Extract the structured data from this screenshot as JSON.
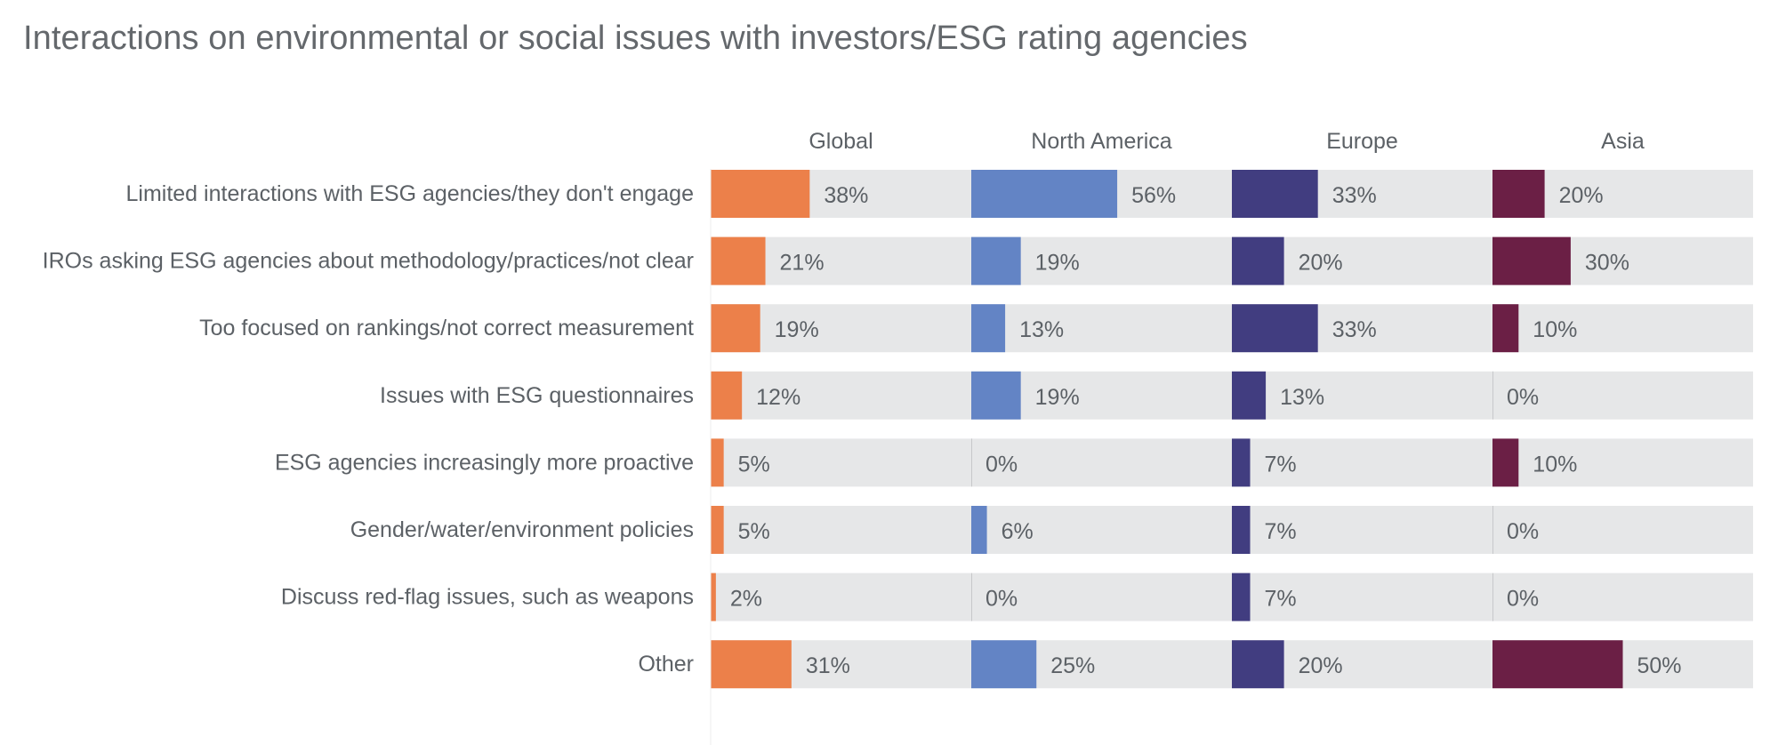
{
  "chart_data": {
    "type": "bar",
    "title": "Interactions on environmental or social issues with investors/ESG rating agencies",
    "categories": [
      "Limited interactions with ESG agencies/they don't engage",
      "IROs asking ESG agencies about methodology/practices/not clear",
      "Too focused on rankings/not correct measurement",
      "Issues with ESG questionnaires",
      "ESG agencies increasingly more proactive",
      "Gender/water/environment policies",
      "Discuss red-flag issues, such as weapons",
      "Other"
    ],
    "series": [
      {
        "name": "Global",
        "color": "#ec804a",
        "values": [
          38,
          21,
          19,
          12,
          5,
          5,
          2,
          31
        ]
      },
      {
        "name": "North America",
        "color": "#6384c5",
        "values": [
          56,
          19,
          13,
          19,
          0,
          6,
          0,
          25
        ]
      },
      {
        "name": "Europe",
        "color": "#413d80",
        "values": [
          33,
          20,
          33,
          13,
          7,
          7,
          7,
          20
        ]
      },
      {
        "name": "Asia",
        "color": "#6b1f45",
        "values": [
          20,
          30,
          10,
          0,
          10,
          0,
          0,
          50
        ]
      }
    ],
    "value_format": "percent",
    "xlim": [
      0,
      100
    ],
    "grid": false,
    "legend": "none",
    "track_color": "#e6e7e8"
  }
}
